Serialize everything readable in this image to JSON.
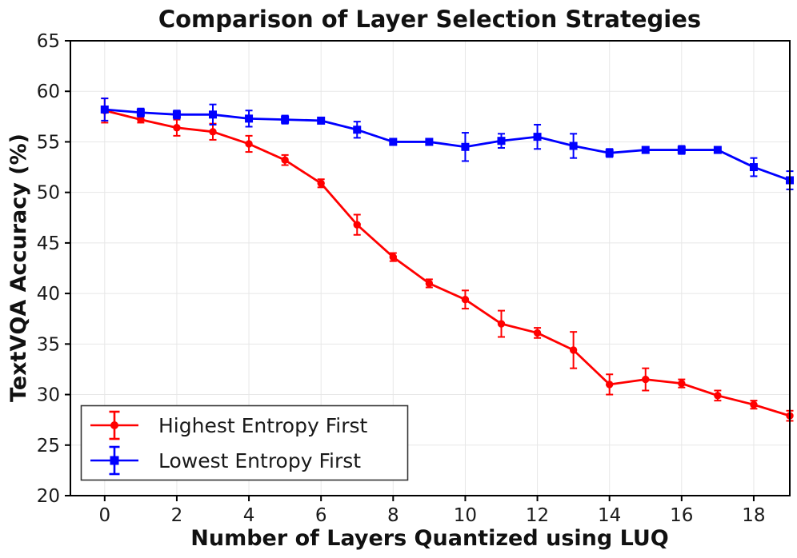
{
  "chart_data": {
    "type": "line",
    "title": "Comparison of Layer Selection Strategies",
    "xlabel": "Number of Layers Quantized using LUQ",
    "ylabel": "TextVQA Accuracy (%)",
    "xlim": [
      -0.95,
      19.0
    ],
    "ylim": [
      20,
      65
    ],
    "x_ticks": [
      0,
      2,
      4,
      6,
      8,
      10,
      12,
      14,
      16,
      18
    ],
    "y_ticks": [
      20,
      25,
      30,
      35,
      40,
      45,
      50,
      55,
      60,
      65
    ],
    "grid": true,
    "legend_position": "lower-left",
    "x": [
      0,
      1,
      2,
      3,
      4,
      5,
      6,
      7,
      8,
      9,
      10,
      11,
      12,
      13,
      14,
      15,
      16,
      17,
      18,
      19
    ],
    "series": [
      {
        "name": "Highest Entropy First",
        "marker": "circle",
        "color": "#ff0000",
        "values": [
          58.1,
          57.2,
          56.4,
          56.0,
          54.8,
          53.2,
          50.9,
          46.8,
          43.6,
          41.0,
          39.4,
          37.0,
          36.1,
          34.4,
          31.0,
          31.5,
          31.1,
          29.9,
          29.0,
          27.9
        ],
        "errors": [
          1.2,
          0.3,
          0.8,
          0.8,
          0.8,
          0.5,
          0.4,
          1.0,
          0.4,
          0.4,
          0.9,
          1.3,
          0.5,
          1.8,
          1.0,
          1.1,
          0.4,
          0.5,
          0.4,
          0.5
        ]
      },
      {
        "name": "Lowest Entropy First",
        "marker": "square",
        "color": "#0000ff",
        "values": [
          58.2,
          57.9,
          57.7,
          57.7,
          57.3,
          57.2,
          57.1,
          56.2,
          55.0,
          55.0,
          54.5,
          55.1,
          55.5,
          54.6,
          53.9,
          54.2,
          54.2,
          54.2,
          52.5,
          51.2
        ],
        "errors": [
          1.1,
          0.4,
          0.4,
          1.0,
          0.8,
          0.4,
          0.3,
          0.8,
          0.3,
          0.3,
          1.4,
          0.7,
          1.2,
          1.2,
          0.4,
          0.3,
          0.4,
          0.3,
          0.9,
          0.9
        ]
      }
    ]
  },
  "colors": {
    "red_series": "#ff0000",
    "blue_series": "#0000ff",
    "grid": "#e7e7e7",
    "text": "#1a1a1a",
    "spine": "#000000",
    "legend_border": "#333333",
    "legend_fill": "#ffffff"
  }
}
